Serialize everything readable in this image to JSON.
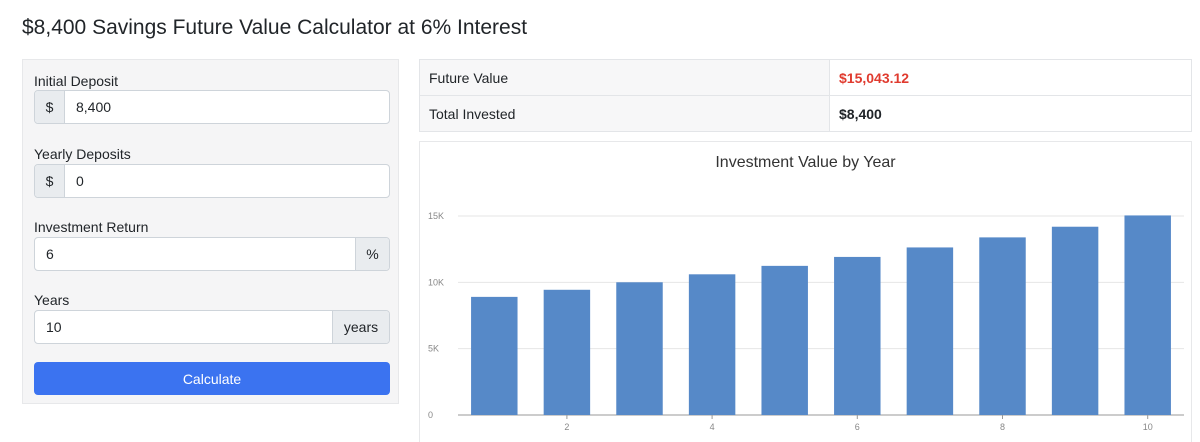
{
  "page": {
    "title": "$8,400 Savings Future Value Calculator at 6% Interest"
  },
  "form": {
    "initial_deposit": {
      "label": "Initial Deposit",
      "prefix": "$",
      "value": "8,400"
    },
    "yearly_deposits": {
      "label": "Yearly Deposits",
      "prefix": "$",
      "value": "0"
    },
    "investment_return": {
      "label": "Investment Return",
      "suffix": "%",
      "value": "6"
    },
    "years": {
      "label": "Years",
      "suffix": "years",
      "value": "10"
    },
    "calculate_label": "Calculate"
  },
  "results": {
    "future_value": {
      "label": "Future Value",
      "value": "$15,043.12"
    },
    "total_invested": {
      "label": "Total Invested",
      "value": "$8,400"
    }
  },
  "colors": {
    "accent": "#3b73f0",
    "future_value": "#e03b2f",
    "bar": "#5689c8"
  },
  "chart_data": {
    "type": "bar",
    "title": "Investment Value by Year",
    "xlabel": "",
    "ylabel": "",
    "categories": [
      1,
      2,
      3,
      4,
      5,
      6,
      7,
      8,
      9,
      10
    ],
    "x_tick_labels": [
      "2",
      "4",
      "6",
      "8",
      "10"
    ],
    "y_tick_labels": [
      "0",
      "5K",
      "10K",
      "15K"
    ],
    "y_ticks": [
      0,
      5000,
      10000,
      15000
    ],
    "ylim": [
      0,
      15000
    ],
    "values": [
      8904,
      9438.24,
      10004.53,
      10604.81,
      11241.1,
      11915.57,
      12630.5,
      13388.33,
      14191.63,
      15043.12
    ],
    "grid": true,
    "legend": "none"
  }
}
